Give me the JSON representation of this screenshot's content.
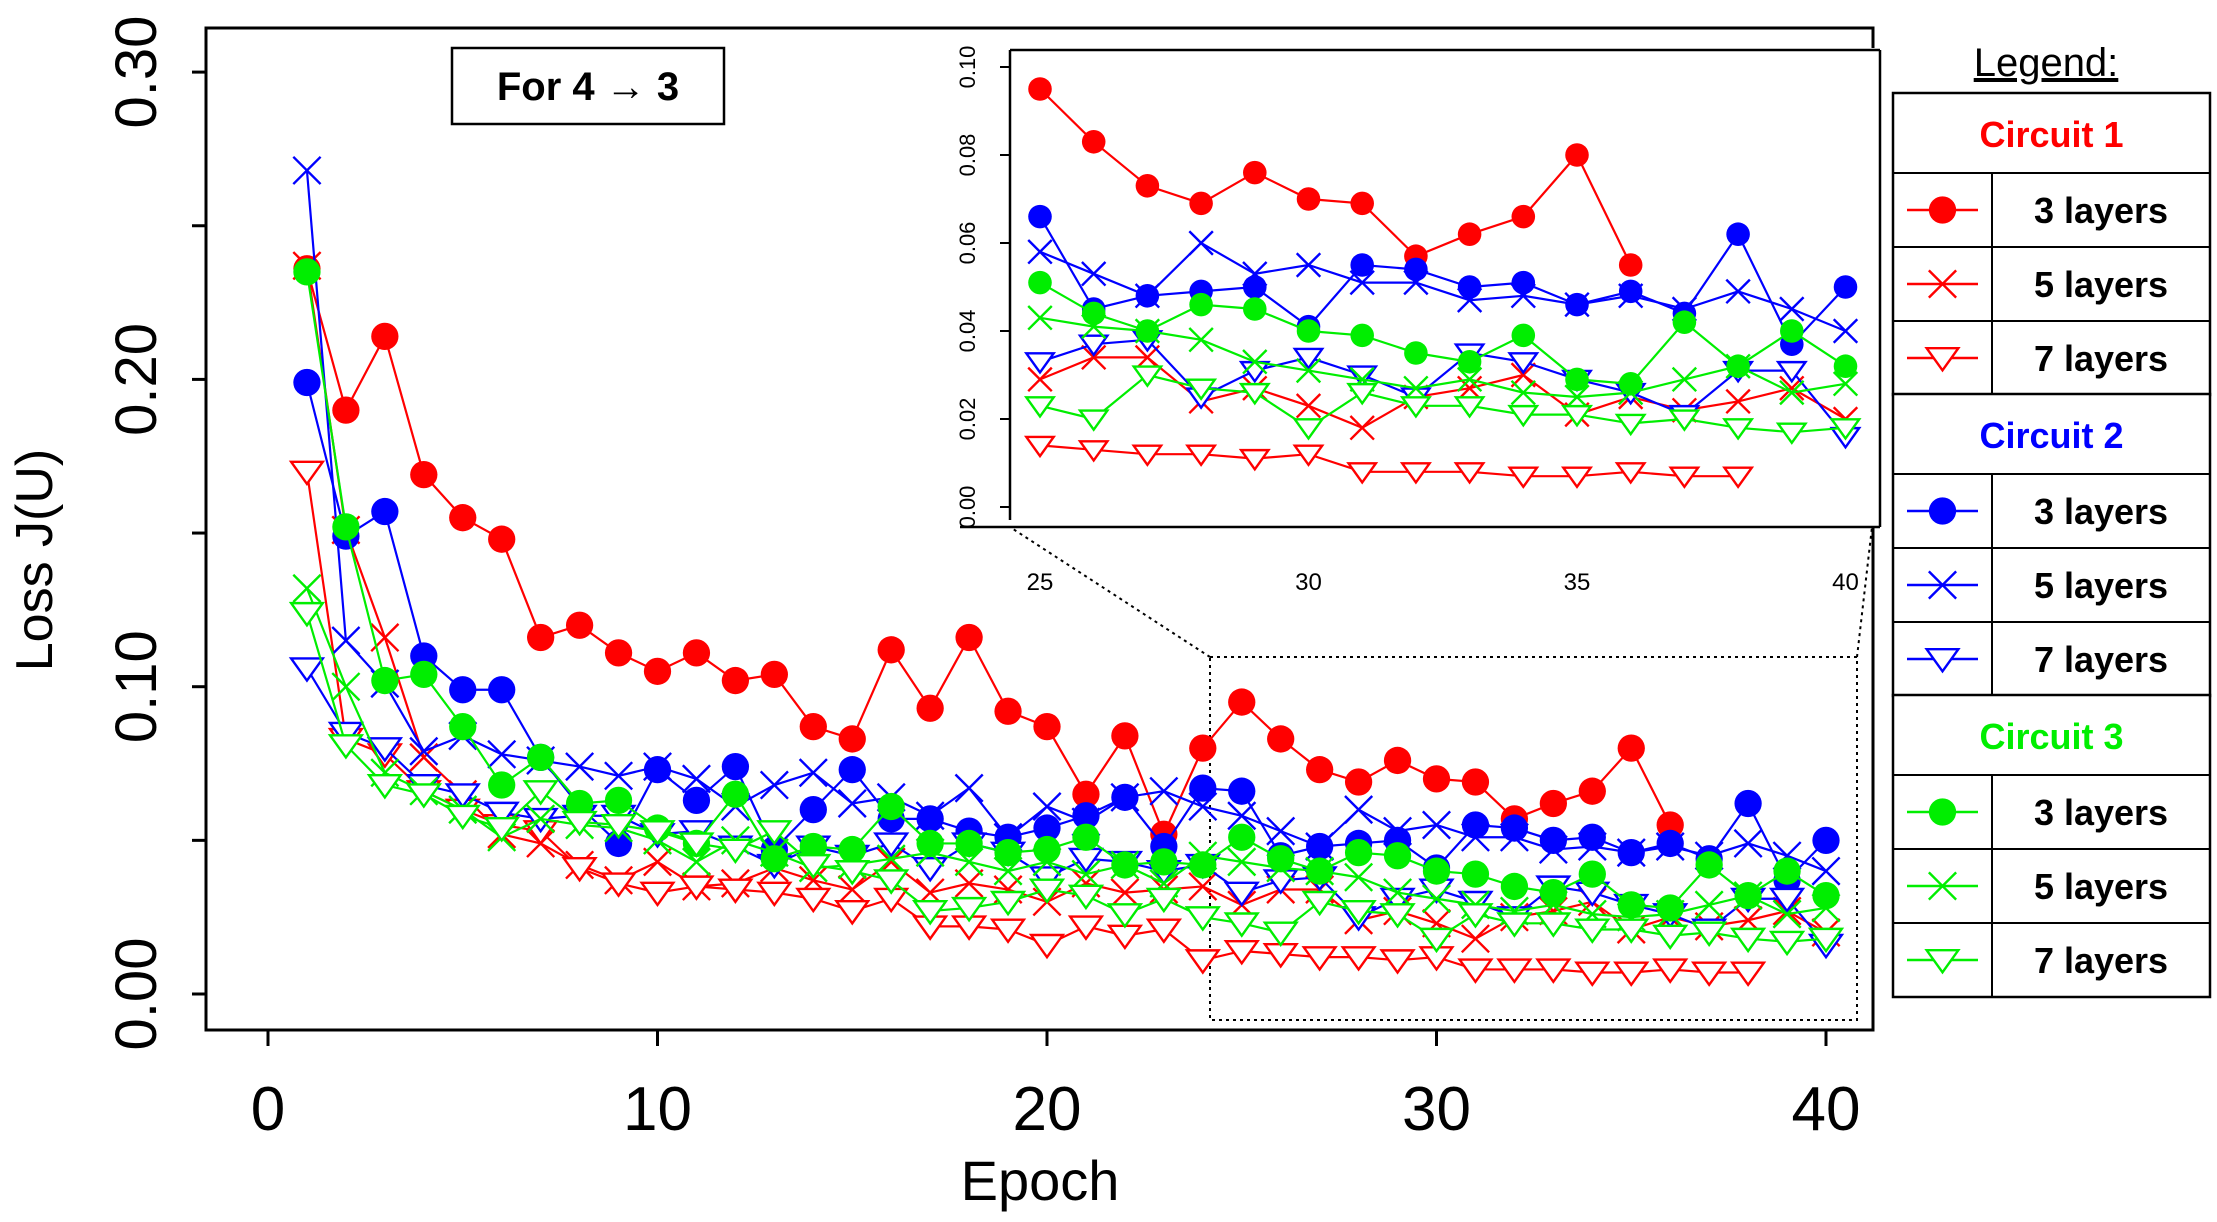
{
  "chart_data": {
    "type": "line",
    "annotation": "For 4 → 3",
    "xlabel": "Epoch",
    "ylabel": "Loss J(U)",
    "xlim": [
      0,
      40
    ],
    "ylim": [
      0,
      0.3
    ],
    "x_ticks": [
      "0",
      "10",
      "20",
      "30",
      "40"
    ],
    "y_ticks": [
      "0.00",
      "0.10",
      "0.20",
      "0.30"
    ],
    "legend_title": "Legend:",
    "legend_placement": "right",
    "groups": [
      {
        "label": "Circuit 1",
        "color": "#ff0000"
      },
      {
        "label": "Circuit 2",
        "color": "#0000ff"
      },
      {
        "label": "Circuit 3",
        "color": "#00ee00"
      }
    ],
    "layer_labels": [
      "3 layers",
      "5 layers",
      "7 layers"
    ],
    "series": [
      {
        "name": "Circuit 1 – 3 layers",
        "color": "#ff0000",
        "marker": "circle",
        "x": [
          1,
          2,
          3,
          4,
          5,
          6,
          7,
          8,
          9,
          10,
          11,
          12,
          13,
          14,
          15,
          16,
          17,
          18,
          19,
          20,
          21,
          22,
          23,
          24,
          25,
          26,
          27,
          28,
          29,
          30,
          31,
          32,
          33,
          34,
          35,
          36
        ],
        "y": [
          0.236,
          0.19,
          0.214,
          0.169,
          0.155,
          0.148,
          0.116,
          0.12,
          0.111,
          0.105,
          0.111,
          0.102,
          0.104,
          0.087,
          0.083,
          0.112,
          0.093,
          0.116,
          0.092,
          0.087,
          0.065,
          0.084,
          0.052,
          0.08,
          0.095,
          0.083,
          0.073,
          0.069,
          0.076,
          0.07,
          0.069,
          0.057,
          0.062,
          0.066,
          0.08,
          0.055
        ]
      },
      {
        "name": "Circuit 1 – 5 layers",
        "color": "#ff0000",
        "marker": "x",
        "x": [
          1,
          2,
          3,
          4,
          5,
          6,
          7,
          8,
          9,
          10,
          11,
          12,
          13,
          14,
          15,
          16,
          17,
          18,
          19,
          20,
          21,
          22,
          23,
          24,
          25,
          26,
          27,
          28,
          29,
          30,
          31,
          32,
          33,
          34,
          35,
          36,
          37,
          38,
          39,
          40
        ],
        "y": [
          0.237,
          0.151,
          0.116,
          0.077,
          0.065,
          0.052,
          0.049,
          0.042,
          0.037,
          0.043,
          0.035,
          0.036,
          0.041,
          0.037,
          0.034,
          0.043,
          0.033,
          0.036,
          0.034,
          0.03,
          0.036,
          0.033,
          0.034,
          0.035,
          0.029,
          0.034,
          0.034,
          0.024,
          0.027,
          0.023,
          0.018,
          0.025,
          0.027,
          0.03,
          0.021,
          0.025,
          0.022,
          0.024,
          0.027,
          0.02
        ]
      },
      {
        "name": "Circuit 1 – 7 layers",
        "color": "#ff0000",
        "marker": "triangle",
        "x": [
          1,
          2,
          3,
          4,
          5,
          6,
          7,
          8,
          9,
          10,
          11,
          12,
          13,
          14,
          15,
          16,
          17,
          18,
          19,
          20,
          21,
          22,
          23,
          24,
          25,
          26,
          27,
          28,
          29,
          30,
          31,
          32,
          33,
          34,
          35,
          36,
          37,
          38
        ],
        "y": [
          0.17,
          0.083,
          0.078,
          0.066,
          0.06,
          0.055,
          0.053,
          0.041,
          0.036,
          0.033,
          0.035,
          0.034,
          0.033,
          0.031,
          0.027,
          0.031,
          0.022,
          0.022,
          0.021,
          0.016,
          0.022,
          0.019,
          0.021,
          0.011,
          0.014,
          0.013,
          0.012,
          0.012,
          0.011,
          0.012,
          0.008,
          0.008,
          0.008,
          0.007,
          0.007,
          0.008,
          0.007,
          0.007
        ]
      },
      {
        "name": "Circuit 2 – 3 layers",
        "color": "#0000ff",
        "marker": "circle",
        "x": [
          1,
          2,
          3,
          4,
          5,
          6,
          7,
          8,
          9,
          10,
          11,
          12,
          13,
          14,
          15,
          16,
          17,
          18,
          19,
          20,
          21,
          22,
          23,
          24,
          25,
          26,
          27,
          28,
          29,
          30,
          31,
          32,
          33,
          34,
          35,
          36,
          37,
          38,
          39,
          40
        ],
        "y": [
          0.199,
          0.149,
          0.157,
          0.11,
          0.099,
          0.099,
          0.077,
          0.061,
          0.049,
          0.073,
          0.063,
          0.074,
          0.047,
          0.06,
          0.073,
          0.057,
          0.057,
          0.053,
          0.051,
          0.054,
          0.058,
          0.064,
          0.048,
          0.067,
          0.066,
          0.045,
          0.048,
          0.049,
          0.05,
          0.041,
          0.055,
          0.054,
          0.05,
          0.051,
          0.046,
          0.049,
          0.044,
          0.062,
          0.037,
          0.05
        ]
      },
      {
        "name": "Circuit 2 – 5 layers",
        "color": "#0000ff",
        "marker": "x",
        "x": [
          1,
          2,
          3,
          4,
          5,
          6,
          7,
          8,
          9,
          10,
          11,
          12,
          13,
          14,
          15,
          16,
          17,
          18,
          19,
          20,
          21,
          22,
          23,
          24,
          25,
          26,
          27,
          28,
          29,
          30,
          31,
          32,
          33,
          34,
          35,
          36,
          37,
          38,
          39,
          40
        ],
        "y": [
          0.268,
          0.115,
          0.101,
          0.079,
          0.084,
          0.078,
          0.076,
          0.074,
          0.071,
          0.074,
          0.07,
          0.061,
          0.068,
          0.072,
          0.062,
          0.064,
          0.058,
          0.067,
          0.051,
          0.061,
          0.056,
          0.064,
          0.066,
          0.061,
          0.058,
          0.053,
          0.048,
          0.06,
          0.053,
          0.055,
          0.051,
          0.051,
          0.047,
          0.048,
          0.046,
          0.048,
          0.045,
          0.049,
          0.045,
          0.04
        ]
      },
      {
        "name": "Circuit 2 – 7 layers",
        "color": "#0000ff",
        "marker": "triangle",
        "x": [
          1,
          2,
          3,
          4,
          5,
          6,
          7,
          8,
          9,
          10,
          11,
          12,
          13,
          14,
          15,
          16,
          17,
          18,
          19,
          20,
          21,
          22,
          23,
          24,
          25,
          26,
          27,
          28,
          29,
          30,
          31,
          32,
          33,
          34,
          35,
          36,
          37,
          38,
          39,
          40
        ],
        "y": [
          0.106,
          0.085,
          0.08,
          0.068,
          0.065,
          0.059,
          0.057,
          0.058,
          0.058,
          0.052,
          0.053,
          0.048,
          0.042,
          0.048,
          0.045,
          0.049,
          0.041,
          0.049,
          0.046,
          0.038,
          0.044,
          0.043,
          0.04,
          0.042,
          0.033,
          0.037,
          0.038,
          0.025,
          0.031,
          0.034,
          0.03,
          0.025,
          0.035,
          0.033,
          0.029,
          0.026,
          0.021,
          0.031,
          0.031,
          0.016
        ]
      },
      {
        "name": "Circuit 3 – 3 layers",
        "color": "#00ee00",
        "marker": "circle",
        "x": [
          1,
          2,
          3,
          4,
          5,
          6,
          7,
          8,
          9,
          10,
          11,
          12,
          13,
          14,
          15,
          16,
          17,
          18,
          19,
          20,
          21,
          22,
          23,
          24,
          25,
          26,
          27,
          28,
          29,
          30,
          31,
          32,
          33,
          34,
          35,
          36,
          37,
          38,
          39,
          40
        ],
        "y": [
          0.235,
          0.152,
          0.102,
          0.104,
          0.087,
          0.068,
          0.077,
          0.062,
          0.063,
          0.054,
          0.049,
          0.065,
          0.044,
          0.048,
          0.047,
          0.061,
          0.049,
          0.049,
          0.046,
          0.047,
          0.051,
          0.042,
          0.043,
          0.042,
          0.051,
          0.044,
          0.04,
          0.046,
          0.045,
          0.04,
          0.039,
          0.035,
          0.033,
          0.039,
          0.029,
          0.028,
          0.042,
          0.032,
          0.04,
          0.032
        ]
      },
      {
        "name": "Circuit 3 – 5 layers",
        "color": "#00ee00",
        "marker": "x",
        "x": [
          1,
          2,
          3,
          4,
          5,
          6,
          7,
          8,
          9,
          10,
          11,
          12,
          13,
          14,
          15,
          16,
          17,
          18,
          19,
          20,
          21,
          22,
          23,
          24,
          25,
          26,
          27,
          28,
          29,
          30,
          31,
          32,
          33,
          34,
          35,
          36,
          37,
          38,
          39,
          40
        ],
        "y": [
          0.132,
          0.1,
          0.072,
          0.066,
          0.06,
          0.051,
          0.057,
          0.055,
          0.054,
          0.05,
          0.043,
          0.05,
          0.046,
          0.041,
          0.042,
          0.044,
          0.046,
          0.043,
          0.04,
          0.043,
          0.039,
          0.042,
          0.036,
          0.045,
          0.043,
          0.041,
          0.04,
          0.038,
          0.033,
          0.031,
          0.029,
          0.027,
          0.029,
          0.026,
          0.025,
          0.026,
          0.029,
          0.032,
          0.026,
          0.028
        ]
      },
      {
        "name": "Circuit 3 – 7 layers",
        "color": "#00ee00",
        "marker": "triangle",
        "x": [
          1,
          2,
          3,
          4,
          5,
          6,
          7,
          8,
          9,
          10,
          11,
          12,
          13,
          14,
          15,
          16,
          17,
          18,
          19,
          20,
          21,
          22,
          23,
          24,
          25,
          26,
          27,
          28,
          29,
          30,
          31,
          32,
          33,
          34,
          35,
          36,
          37,
          38,
          39,
          40
        ],
        "y": [
          0.124,
          0.081,
          0.068,
          0.065,
          0.058,
          0.054,
          0.066,
          0.056,
          0.055,
          0.053,
          0.049,
          0.047,
          0.053,
          0.042,
          0.04,
          0.037,
          0.027,
          0.028,
          0.03,
          0.034,
          0.032,
          0.026,
          0.031,
          0.025,
          0.023,
          0.02,
          0.03,
          0.027,
          0.026,
          0.018,
          0.026,
          0.023,
          0.023,
          0.021,
          0.021,
          0.019,
          0.02,
          0.018,
          0.017,
          0.018
        ]
      }
    ],
    "inset": {
      "xlim": [
        24.2,
        40.2
      ],
      "ylim": [
        0,
        0.1
      ],
      "x_ticks": [
        "25",
        "30",
        "35",
        "40"
      ],
      "y_ticks": [
        "0.00",
        "0.02",
        "0.04",
        "0.06",
        "0.08",
        "0.10"
      ]
    }
  }
}
